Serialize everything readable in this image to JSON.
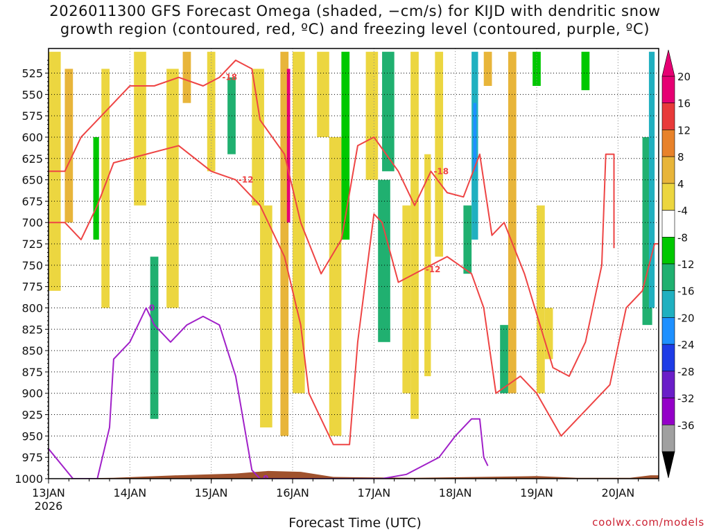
{
  "title": {
    "line1": "2026011300 GFS Forecast Omega (shaded, −cm/s) for KIJD with dendritic snow",
    "line2": "growth region (contoured, red, ºC) and freezing level (contoured, purple, ºC)"
  },
  "xlabel": "Forecast Time (UTC)",
  "credit": "coolwx.com/models",
  "chart_data": {
    "type": "heatmap",
    "y_levels": [
      525,
      550,
      575,
      600,
      625,
      650,
      675,
      700,
      725,
      750,
      775,
      800,
      825,
      850,
      875,
      900,
      925,
      950,
      975,
      1000
    ],
    "ylim": [
      1000,
      500
    ],
    "x_ticks": [
      "13JAN",
      "14JAN",
      "15JAN",
      "16JAN",
      "17JAN",
      "18JAN",
      "19JAN",
      "20JAN"
    ],
    "x_year_label": "2026",
    "xlim_days": [
      0,
      7.5
    ],
    "grid": true,
    "colorbar": {
      "ticks": [
        "20",
        "16",
        "12",
        "8",
        "4",
        "-4",
        "-8",
        "-12",
        "-16",
        "-20",
        "-24",
        "-28",
        "-32",
        "-36"
      ],
      "colors": [
        "#e60073",
        "#e83a3a",
        "#e8822a",
        "#e8b53a",
        "#ecd640",
        "#ffffff",
        "#00c800",
        "#20b070",
        "#20b0c0",
        "#1e90ff",
        "#1e3ce6",
        "#6a1ec8",
        "#9400c8",
        "#a0a0a0"
      ],
      "ends": {
        "top": "#e60073",
        "bottom": "#000000"
      }
    },
    "omega_bands": [
      {
        "x0": 0.0,
        "x1": 0.15,
        "p0": 500,
        "p1": 780,
        "v": 5
      },
      {
        "x0": 0.2,
        "x1": 0.3,
        "p0": 520,
        "p1": 700,
        "v": 9
      },
      {
        "x0": 0.55,
        "x1": 0.62,
        "p0": 600,
        "p1": 720,
        "v": -6
      },
      {
        "x0": 0.65,
        "x1": 0.75,
        "p0": 520,
        "p1": 800,
        "v": 5
      },
      {
        "x0": 1.05,
        "x1": 1.2,
        "p0": 500,
        "p1": 680,
        "v": 6
      },
      {
        "x0": 1.25,
        "x1": 1.35,
        "p0": 740,
        "p1": 930,
        "v": -8
      },
      {
        "x0": 1.45,
        "x1": 1.6,
        "p0": 520,
        "p1": 800,
        "v": 5
      },
      {
        "x0": 1.65,
        "x1": 1.75,
        "p0": 500,
        "p1": 560,
        "v": 8
      },
      {
        "x0": 1.95,
        "x1": 2.05,
        "p0": 500,
        "p1": 640,
        "v": 5
      },
      {
        "x0": 2.2,
        "x1": 2.3,
        "p0": 530,
        "p1": 620,
        "v": -8
      },
      {
        "x0": 2.5,
        "x1": 2.65,
        "p0": 520,
        "p1": 680,
        "v": 5
      },
      {
        "x0": 2.6,
        "x1": 2.75,
        "p0": 680,
        "p1": 940,
        "v": 5
      },
      {
        "x0": 2.85,
        "x1": 2.95,
        "p0": 500,
        "p1": 950,
        "v": 8
      },
      {
        "x0": 2.93,
        "x1": 2.97,
        "p0": 520,
        "p1": 700,
        "v": 20
      },
      {
        "x0": 3.0,
        "x1": 3.15,
        "p0": 500,
        "p1": 900,
        "v": 6
      },
      {
        "x0": 3.3,
        "x1": 3.45,
        "p0": 500,
        "p1": 600,
        "v": 5
      },
      {
        "x0": 3.45,
        "x1": 3.6,
        "p0": 600,
        "p1": 950,
        "v": 6
      },
      {
        "x0": 3.6,
        "x1": 3.7,
        "p0": 500,
        "p1": 720,
        "v": -6
      },
      {
        "x0": 3.9,
        "x1": 4.05,
        "p0": 500,
        "p1": 650,
        "v": 5
      },
      {
        "x0": 4.05,
        "x1": 4.2,
        "p0": 650,
        "p1": 840,
        "v": -8
      },
      {
        "x0": 4.1,
        "x1": 4.25,
        "p0": 500,
        "p1": 640,
        "v": -8
      },
      {
        "x0": 4.35,
        "x1": 4.45,
        "p0": 680,
        "p1": 900,
        "v": 5
      },
      {
        "x0": 4.45,
        "x1": 4.55,
        "p0": 500,
        "p1": 930,
        "v": 6
      },
      {
        "x0": 4.62,
        "x1": 4.7,
        "p0": 620,
        "p1": 880,
        "v": 5
      },
      {
        "x0": 4.75,
        "x1": 4.85,
        "p0": 500,
        "p1": 740,
        "v": 5
      },
      {
        "x0": 5.1,
        "x1": 5.2,
        "p0": 680,
        "p1": 760,
        "v": -8
      },
      {
        "x0": 5.2,
        "x1": 5.28,
        "p0": 500,
        "p1": 720,
        "v": -12
      },
      {
        "x0": 5.22,
        "x1": 5.26,
        "p0": 560,
        "p1": 640,
        "v": -16
      },
      {
        "x0": 5.35,
        "x1": 5.45,
        "p0": 500,
        "p1": 540,
        "v": 8
      },
      {
        "x0": 5.55,
        "x1": 5.65,
        "p0": 820,
        "p1": 900,
        "v": -8
      },
      {
        "x0": 5.65,
        "x1": 5.75,
        "p0": 500,
        "p1": 900,
        "v": 9
      },
      {
        "x0": 5.95,
        "x1": 6.05,
        "p0": 500,
        "p1": 540,
        "v": -6
      },
      {
        "x0": 6.0,
        "x1": 6.1,
        "p0": 680,
        "p1": 900,
        "v": 5
      },
      {
        "x0": 6.1,
        "x1": 6.2,
        "p0": 800,
        "p1": 860,
        "v": 5
      },
      {
        "x0": 6.55,
        "x1": 6.65,
        "p0": 500,
        "p1": 545,
        "v": -7
      },
      {
        "x0": 7.3,
        "x1": 7.42,
        "p0": 600,
        "p1": 820,
        "v": -8
      },
      {
        "x0": 7.38,
        "x1": 7.45,
        "p0": 500,
        "p1": 800,
        "v": -13
      }
    ],
    "terrain_surface_hpa": [
      [
        0,
        1000
      ],
      [
        0.8,
        999
      ],
      [
        1.6,
        996
      ],
      [
        2.3,
        994
      ],
      [
        2.7,
        991
      ],
      [
        3.1,
        992
      ],
      [
        3.5,
        998
      ],
      [
        4.5,
        999
      ],
      [
        5.3,
        998
      ],
      [
        6.0,
        997
      ],
      [
        6.5,
        999
      ],
      [
        7.15,
        999
      ],
      [
        7.4,
        996
      ],
      [
        7.5,
        996
      ]
    ],
    "contours": [
      {
        "level": -18,
        "color": "#ee4444",
        "label": "-18",
        "points": [
          [
            0,
            640
          ],
          [
            0.2,
            640
          ],
          [
            0.4,
            600
          ],
          [
            0.8,
            560
          ],
          [
            1.0,
            540
          ],
          [
            1.3,
            540
          ],
          [
            1.6,
            530
          ],
          [
            1.9,
            540
          ],
          [
            2.1,
            530
          ],
          [
            2.3,
            510
          ],
          [
            2.5,
            520
          ],
          [
            2.6,
            580
          ],
          [
            2.9,
            620
          ],
          [
            3.1,
            700
          ],
          [
            3.35,
            760
          ],
          [
            3.6,
            720
          ],
          [
            3.8,
            610
          ],
          [
            4.0,
            600
          ],
          [
            4.3,
            640
          ],
          [
            4.5,
            680
          ],
          [
            4.7,
            640
          ],
          [
            4.9,
            665
          ],
          [
            5.1,
            670
          ],
          [
            5.3,
            620
          ],
          [
            5.45,
            715
          ],
          [
            5.6,
            700
          ],
          [
            5.85,
            760
          ],
          [
            6.2,
            870
          ],
          [
            6.4,
            880
          ],
          [
            6.6,
            840
          ],
          [
            6.8,
            750
          ],
          [
            6.85,
            620
          ],
          [
            6.95,
            620
          ],
          [
            6.95,
            730
          ]
        ]
      },
      {
        "level": -12,
        "color": "#ee4444",
        "label": "-12",
        "points": [
          [
            0,
            700
          ],
          [
            0.2,
            700
          ],
          [
            0.4,
            720
          ],
          [
            0.6,
            680
          ],
          [
            0.8,
            630
          ],
          [
            1.2,
            620
          ],
          [
            1.6,
            610
          ],
          [
            2.0,
            640
          ],
          [
            2.3,
            650
          ],
          [
            2.6,
            680
          ],
          [
            2.9,
            740
          ],
          [
            3.1,
            820
          ],
          [
            3.2,
            900
          ],
          [
            3.5,
            960
          ],
          [
            3.7,
            960
          ],
          [
            3.8,
            840
          ],
          [
            4.0,
            690
          ],
          [
            4.1,
            700
          ],
          [
            4.3,
            770
          ],
          [
            4.6,
            755
          ],
          [
            4.9,
            740
          ],
          [
            5.2,
            760
          ],
          [
            5.35,
            800
          ],
          [
            5.5,
            900
          ],
          [
            5.8,
            880
          ],
          [
            6.0,
            900
          ],
          [
            6.3,
            950
          ],
          [
            6.6,
            920
          ],
          [
            6.9,
            890
          ],
          [
            7.1,
            800
          ],
          [
            7.3,
            780
          ],
          [
            7.45,
            725
          ],
          [
            7.5,
            725
          ]
        ]
      },
      {
        "level": 0,
        "color": "#a020c8",
        "label": "0",
        "points": [
          [
            0,
            965
          ],
          [
            0.3,
            1000
          ],
          [
            0.6,
            1000
          ],
          [
            0.75,
            940
          ],
          [
            0.8,
            860
          ],
          [
            1.0,
            840
          ],
          [
            1.2,
            800
          ],
          [
            1.3,
            820
          ],
          [
            1.5,
            840
          ],
          [
            1.7,
            820
          ],
          [
            1.9,
            810
          ],
          [
            2.1,
            820
          ],
          [
            2.3,
            880
          ],
          [
            2.5,
            990
          ],
          [
            2.6,
            1000
          ],
          [
            3.3,
            1000
          ],
          [
            4.1,
            1000
          ],
          [
            4.4,
            995
          ],
          [
            4.8,
            975
          ],
          [
            5.0,
            950
          ],
          [
            5.2,
            930
          ],
          [
            5.3,
            930
          ],
          [
            5.35,
            975
          ],
          [
            5.4,
            985
          ]
        ]
      }
    ]
  }
}
